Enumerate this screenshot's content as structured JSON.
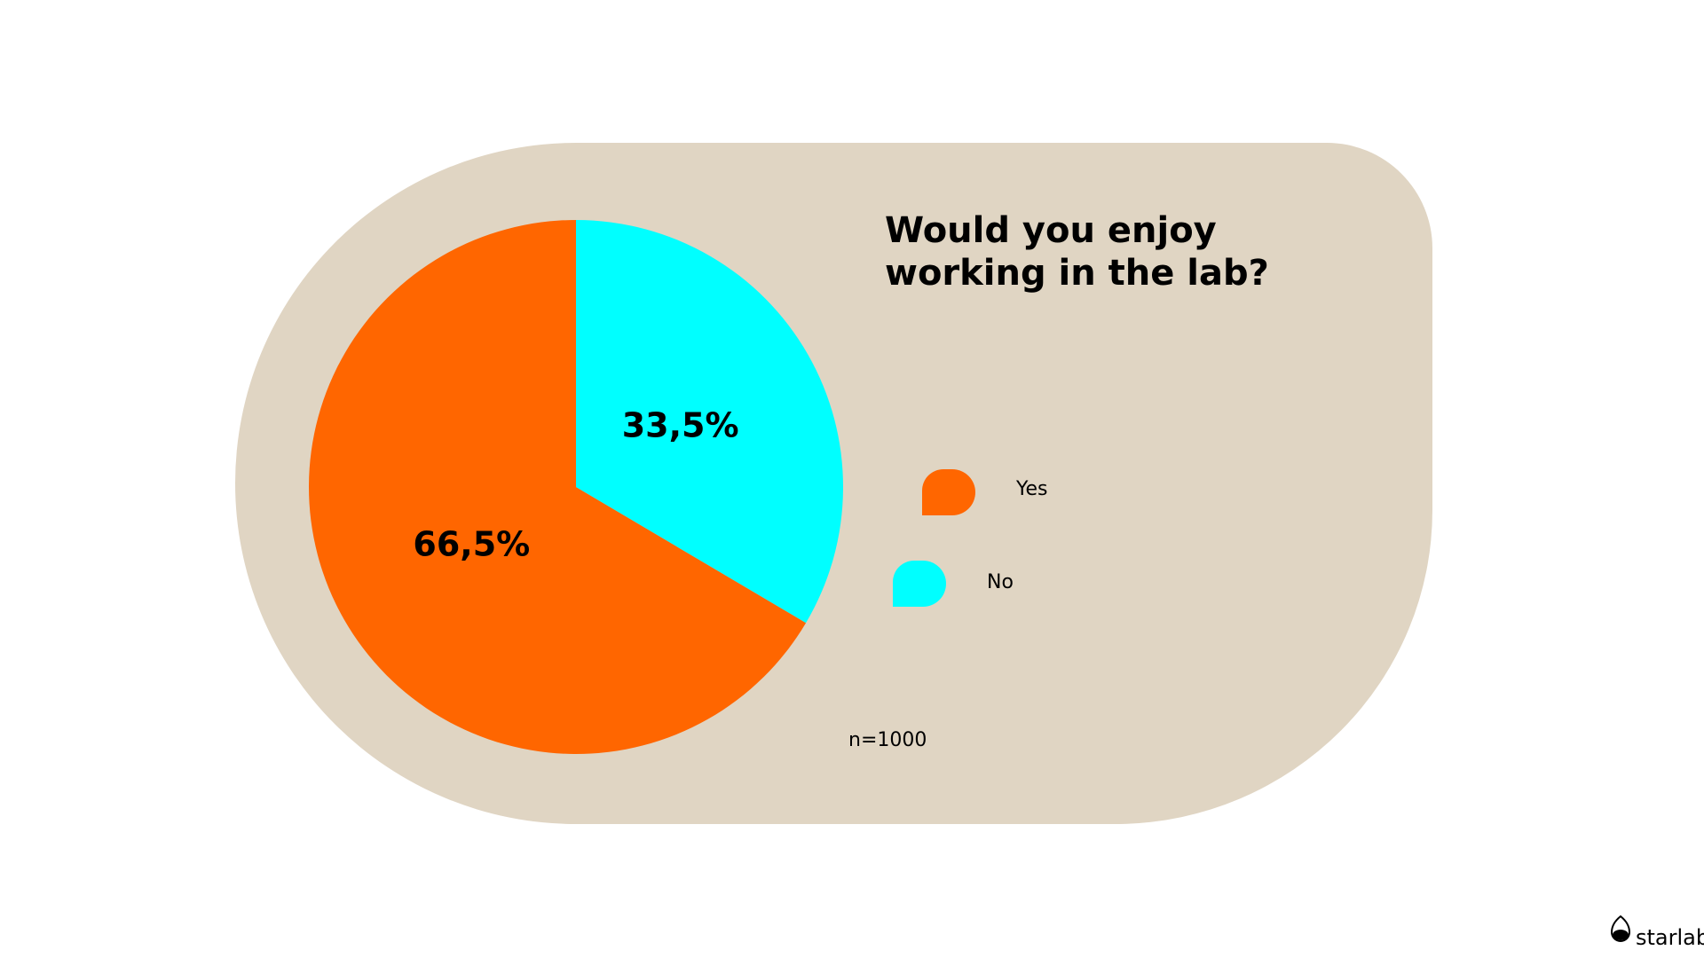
{
  "chart_data": {
    "type": "pie",
    "title": "Would you enjoy working in the lab?",
    "categories": [
      "Yes",
      "No"
    ],
    "values": [
      66.5,
      33.5
    ],
    "value_labels": [
      "66,5%",
      "33,5%"
    ],
    "colors": [
      "#ff6600",
      "#00ffff"
    ],
    "annotation": "n=1000"
  },
  "logo": "starlab"
}
